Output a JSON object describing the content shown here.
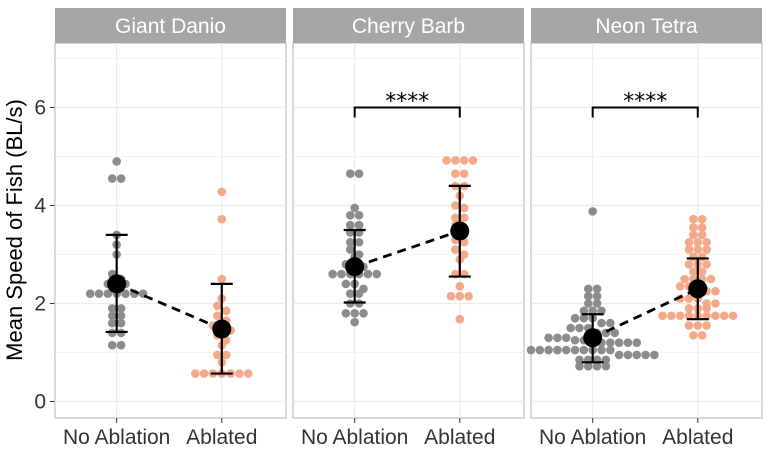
{
  "chart_data": {
    "type": "scatter",
    "ylabel": "Mean Speed of Fish (BL/s)",
    "ylim": [
      -0.3,
      7.35
    ],
    "y_ticks": [
      0,
      2,
      4,
      6
    ],
    "y_tick_labels": [
      "0",
      "2",
      "4",
      "6"
    ],
    "categories": [
      "No Ablation",
      "Ablated"
    ],
    "grid": true,
    "colors": {
      "No Ablation": "#8c8c8c",
      "Ablated": "#f4a98a",
      "summary": "#000000",
      "strip": "#a6a6a6",
      "panel_border": "#b3b3b3",
      "grid": "#ebebeb"
    },
    "panels": [
      {
        "species": "Giant Danio",
        "no_ablation": {
          "mean": 2.4,
          "sd_low": 1.42,
          "sd_high": 3.4,
          "points": [
            4.9,
            4.55,
            4.55,
            3.4,
            3.2,
            3.0,
            2.6,
            2.5,
            2.4,
            2.4,
            2.4,
            2.2,
            2.2,
            2.2,
            2.2,
            2.2,
            2.2,
            2.2,
            1.9,
            1.9,
            1.75,
            1.75,
            1.6,
            1.6,
            1.4,
            1.4,
            1.15,
            1.15
          ]
        },
        "ablated": {
          "mean": 1.48,
          "sd_low": 0.57,
          "sd_high": 2.4,
          "points": [
            4.28,
            3.72,
            2.5,
            2.1,
            1.95,
            1.85,
            1.75,
            1.65,
            1.55,
            1.5,
            1.45,
            1.35,
            1.25,
            1.15,
            0.95,
            0.95,
            0.8,
            0.57,
            0.57,
            0.57,
            0.57,
            0.57,
            0.57,
            0.57
          ]
        },
        "significance": ""
      },
      {
        "species": "Cherry Barb",
        "no_ablation": {
          "mean": 2.75,
          "sd_low": 2.02,
          "sd_high": 3.5,
          "points": [
            4.65,
            4.65,
            3.95,
            3.8,
            3.8,
            3.6,
            3.6,
            3.45,
            3.45,
            3.25,
            3.25,
            3.1,
            3.0,
            2.95,
            2.8,
            2.8,
            2.75,
            2.6,
            2.6,
            2.6,
            2.6,
            2.6,
            2.6,
            2.4,
            2.4,
            2.3,
            2.2,
            2.2,
            2.0,
            2.0,
            1.8,
            1.8,
            1.8,
            1.62
          ]
        },
        "ablated": {
          "mean": 3.48,
          "sd_low": 2.55,
          "sd_high": 4.4,
          "points": [
            4.92,
            4.92,
            4.92,
            4.92,
            4.65,
            4.65,
            4.4,
            4.4,
            4.2,
            4.0,
            3.95,
            3.75,
            3.75,
            3.6,
            3.5,
            3.45,
            3.45,
            3.3,
            3.25,
            3.1,
            3.0,
            2.9,
            2.6,
            2.6,
            2.35,
            2.15,
            2.15,
            2.15,
            1.68
          ]
        },
        "significance": "****"
      },
      {
        "species": "Neon Tetra",
        "no_ablation": {
          "mean": 1.3,
          "sd_low": 0.8,
          "sd_high": 1.78,
          "points": [
            3.88,
            2.3,
            2.3,
            2.15,
            2.15,
            2.0,
            2.0,
            1.85,
            1.85,
            1.85,
            1.7,
            1.7,
            1.7,
            1.6,
            1.6,
            1.5,
            1.5,
            1.5,
            1.4,
            1.4,
            1.4,
            1.3,
            1.3,
            1.3,
            1.25,
            1.25,
            1.2,
            1.2,
            1.2,
            1.2,
            1.2,
            1.2,
            1.05,
            1.05,
            1.05,
            1.05,
            1.05,
            1.05,
            1.05,
            1.05,
            1.05,
            1.05,
            0.95,
            0.95,
            0.95,
            0.95,
            0.95,
            0.85,
            0.85,
            0.85,
            0.85,
            0.72,
            0.72,
            0.72,
            0.72
          ]
        },
        "ablated": {
          "mean": 2.3,
          "sd_low": 1.68,
          "sd_high": 2.92,
          "points": [
            3.72,
            3.72,
            3.55,
            3.55,
            3.4,
            3.4,
            3.25,
            3.25,
            3.25,
            3.1,
            3.1,
            3.1,
            2.95,
            2.95,
            2.8,
            2.8,
            2.8,
            2.65,
            2.65,
            2.5,
            2.5,
            2.5,
            2.5,
            2.35,
            2.35,
            2.35,
            2.25,
            2.25,
            2.1,
            2.1,
            2.1,
            2.0,
            2.0,
            1.9,
            1.9,
            1.9,
            1.75,
            1.75,
            1.75,
            1.75,
            1.75,
            1.75,
            1.75,
            1.75,
            1.75,
            1.55,
            1.55,
            1.55,
            1.35,
            1.35
          ]
        },
        "significance": "****"
      }
    ]
  }
}
